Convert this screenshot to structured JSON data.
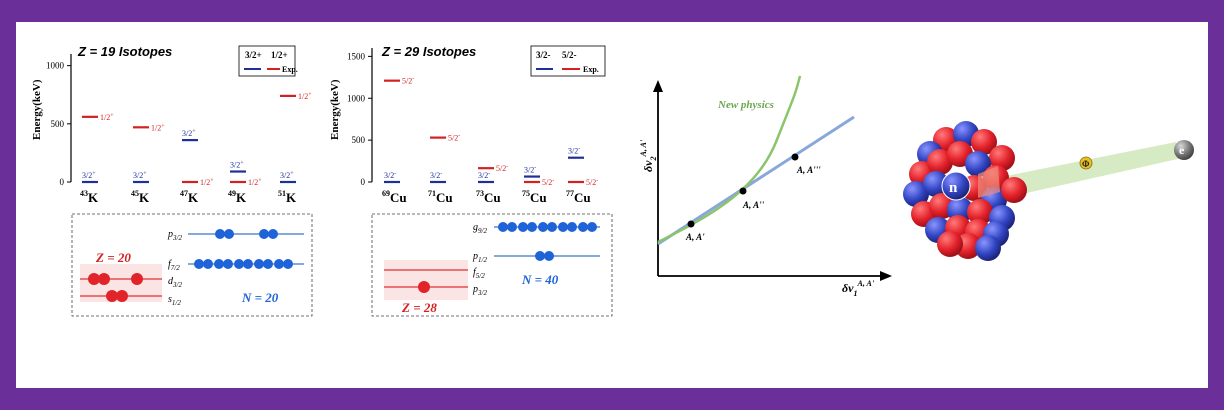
{
  "colors": {
    "border": "#6a2f98",
    "exp_red": "#d42020",
    "theory_blue": "#1f2f9a",
    "proton_red": "#e0242a",
    "neutron_blue": "#1e63d8",
    "shell_line_blue": "#3a78c8",
    "shell_line_red": "#e03030",
    "fit_line": "#8aa7dc",
    "new_physics": "#8cc46a",
    "new_physics_label": "#6aa84f",
    "nucleus_red": "#e4222b",
    "nucleus_blue": "#3346c4",
    "beam": "#cfe8b8",
    "phi_yellow": "#e8c020",
    "electron_gray": "#707070"
  },
  "chart_data": [
    {
      "type": "scatter",
      "title": "Z = 19 Isotopes",
      "ylabel": "Energy(keV)",
      "ylim": [
        0,
        1100
      ],
      "yticks": [
        0,
        500,
        1000
      ],
      "categories": [
        "43K",
        "45K",
        "47K",
        "49K",
        "51K"
      ],
      "category_labels": [
        {
          "mass": "43",
          "symbol": "K"
        },
        {
          "mass": "45",
          "symbol": "K"
        },
        {
          "mass": "47",
          "symbol": "K"
        },
        {
          "mass": "49",
          "symbol": "K"
        },
        {
          "mass": "51",
          "symbol": "K"
        }
      ],
      "legend": {
        "spins": [
          "3/2+",
          "1/2+"
        ],
        "entries": [
          "",
          "Exp."
        ],
        "placement": "top-right"
      },
      "series": [
        {
          "color": "blue",
          "values": [
            0,
            0,
            360,
            90,
            0
          ],
          "labels": [
            "3/2+",
            "3/2+",
            "3/2+",
            "3/2+",
            "3/2+"
          ]
        },
        {
          "color": "red",
          "values": [
            560,
            470,
            0,
            0,
            740
          ],
          "labels": [
            "1/2+",
            "1/2+",
            "1/2+",
            "1/2+",
            "1/2+"
          ]
        }
      ],
      "shell_panel": {
        "proton_label": "Z = 20",
        "neutron_label": "N = 20",
        "orbitals": [
          "p3/2",
          "f7/2",
          "d3/2",
          "s1/2"
        ]
      }
    },
    {
      "type": "scatter",
      "title": "Z = 29 Isotopes",
      "ylabel": "Energy(keV)",
      "ylim": [
        0,
        1600
      ],
      "yticks": [
        0,
        500,
        1000,
        1500
      ],
      "categories": [
        "69Cu",
        "71Cu",
        "73Cu",
        "75Cu",
        "77Cu"
      ],
      "category_labels": [
        {
          "mass": "69",
          "symbol": "Cu"
        },
        {
          "mass": "71",
          "symbol": "Cu"
        },
        {
          "mass": "73",
          "symbol": "Cu"
        },
        {
          "mass": "75",
          "symbol": "Cu"
        },
        {
          "mass": "77",
          "symbol": "Cu"
        }
      ],
      "legend": {
        "spins": [
          "3/2-",
          "5/2-"
        ],
        "entries": [
          "",
          "Exp."
        ],
        "placement": "top-right"
      },
      "series": [
        {
          "color": "blue",
          "values": [
            0,
            0,
            0,
            65,
            290
          ],
          "labels": [
            "3/2-",
            "3/2-",
            "3/2-",
            "3/2-",
            "3/2-"
          ]
        },
        {
          "color": "red",
          "values": [
            1210,
            530,
            165,
            0,
            0
          ],
          "labels": [
            "5/2-",
            "5/2-",
            "5/2-",
            "5/2-",
            "5/2-"
          ]
        }
      ],
      "shell_panel": {
        "proton_label": "Z = 28",
        "neutron_label": "N = 40",
        "orbitals": [
          "g9/2",
          "p1/2",
          "f5/2",
          "p3/2"
        ]
      }
    }
  ],
  "king_plot": {
    "xlabel": "δν1A, A'",
    "ylabel": "δν2A, A'",
    "curve_label": "New physics",
    "points": [
      "A, A'",
      "A, A''",
      "A, A'''"
    ]
  },
  "nucleus": {
    "neutron_label": "n",
    "mediator_label": "Φ",
    "electron_label": "e"
  }
}
